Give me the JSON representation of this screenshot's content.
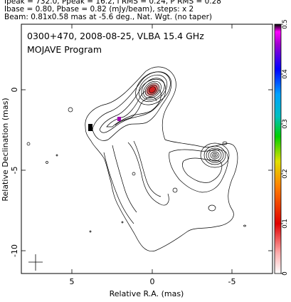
{
  "header": {
    "line1": "Ipeak = 732.0, Ppeak = 16.2, I RMS = 0.24, P RMS = 0.28",
    "line2": "Ibase = 0.80, Pbase = 0.82 (mJy/beam), steps: x 2",
    "line3": "Beam: 0.81x0.58 mas at -5.6 deg., Nat. Wgt. (no taper)"
  },
  "chart_data": {
    "type": "contour",
    "title": "0300+470, 2008-08-25, VLBA 15.4 GHz",
    "subtitle": "MOJAVE Program",
    "xlabel": "Relative R.A. (mas)",
    "ylabel": "Relative Declination (mas)",
    "xlim": [
      8,
      -8
    ],
    "ylim": [
      -11.7,
      3.8
    ],
    "x_ticks": [
      5,
      0,
      -5
    ],
    "y_ticks": [
      0,
      -5,
      -10
    ],
    "colorbar": {
      "range": [
        0,
        0.5
      ],
      "ticks": [
        0,
        0.1,
        0.2,
        0.3,
        0.4,
        0.5
      ],
      "tick_labels": [
        "0",
        "0.1",
        "0.2",
        "0.3",
        "0.4",
        "0.5"
      ]
    },
    "features": [
      {
        "kind": "core",
        "x": 0.0,
        "y": 0.0
      },
      {
        "kind": "component",
        "x": -3.8,
        "y": -4.2
      },
      {
        "kind": "polarized-knot",
        "x": 2.0,
        "y": -2.0
      },
      {
        "kind": "polarized-knot",
        "x": 3.9,
        "y": -2.3
      }
    ],
    "beam": {
      "major_mas": 0.81,
      "minor_mas": 0.58,
      "pa_deg": -5.6
    }
  }
}
